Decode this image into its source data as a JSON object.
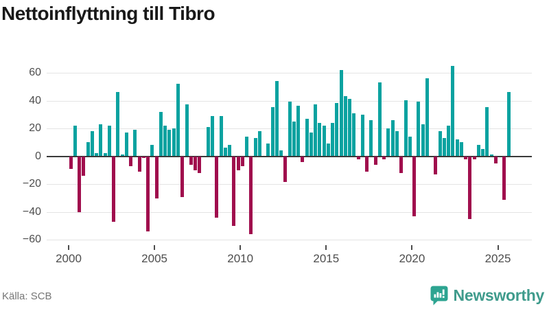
{
  "title": "Nettoinflyttning till Tibro",
  "source": "Källa: SCB",
  "branding": {
    "logo_text": "Newsworthy",
    "logo_icon": "bar-chart-speech-bubble-icon"
  },
  "colors": {
    "positive_bar": "#0aa2a0",
    "negative_bar": "#a00d4d",
    "grid": "#e4e4e4",
    "zero_line": "#3a3a3a",
    "axis_text": "#4d4d4d",
    "title_text": "#191919",
    "source_text": "#767676",
    "brand": "#3f9b8c"
  },
  "chart_data": {
    "type": "bar",
    "title": "Nettoinflyttning till Tibro",
    "x_unit": "quarter",
    "start": "2000Q1",
    "end": "2025Q3",
    "grid": true,
    "legend": "none",
    "ylim": [
      -65,
      68
    ],
    "y_ticks": [
      60,
      40,
      20,
      0,
      -20,
      -40,
      -60
    ],
    "y_tick_labels": [
      "60",
      "40",
      "20",
      "0",
      "−20",
      "−40",
      "−60"
    ],
    "x_tick_years": [
      2000,
      2005,
      2010,
      2015,
      2020,
      2025
    ],
    "x_tick_labels": [
      "2000",
      "2005",
      "2010",
      "2015",
      "2020",
      "2025"
    ],
    "series": [
      {
        "name": "Nettoinflyttning till Tibro",
        "years": [
          {
            "year": 2000,
            "q": [
              -9,
              22,
              -40,
              -14
            ]
          },
          {
            "year": 2001,
            "q": [
              10,
              18,
              2,
              23
            ]
          },
          {
            "year": 2002,
            "q": [
              2,
              22,
              -47,
              46
            ]
          },
          {
            "year": 2003,
            "q": [
              1,
              17,
              -7,
              19
            ]
          },
          {
            "year": 2004,
            "q": [
              -11,
              -1,
              -54,
              8
            ]
          },
          {
            "year": 2005,
            "q": [
              -30,
              32,
              22,
              19
            ]
          },
          {
            "year": 2006,
            "q": [
              20,
              52,
              -29,
              37
            ]
          },
          {
            "year": 2007,
            "q": [
              -6,
              -10,
              -12,
              0
            ]
          },
          {
            "year": 2008,
            "q": [
              21,
              29,
              -44,
              29
            ]
          },
          {
            "year": 2009,
            "q": [
              6,
              8,
              -50,
              -10
            ]
          },
          {
            "year": 2010,
            "q": [
              -7,
              14,
              -56,
              13
            ]
          },
          {
            "year": 2011,
            "q": [
              18,
              0,
              9,
              35
            ]
          },
          {
            "year": 2012,
            "q": [
              54,
              4,
              -18,
              39
            ]
          },
          {
            "year": 2013,
            "q": [
              25,
              36,
              -4,
              27
            ]
          },
          {
            "year": 2014,
            "q": [
              17,
              37,
              24,
              22
            ]
          },
          {
            "year": 2015,
            "q": [
              9,
              24,
              38,
              62
            ]
          },
          {
            "year": 2016,
            "q": [
              43,
              41,
              31,
              -2
            ]
          },
          {
            "year": 2017,
            "q": [
              30,
              -11,
              26,
              -6
            ]
          },
          {
            "year": 2018,
            "q": [
              53,
              -2,
              20,
              26
            ]
          },
          {
            "year": 2019,
            "q": [
              18,
              -12,
              40,
              14
            ]
          },
          {
            "year": 2020,
            "q": [
              -43,
              39,
              23,
              56
            ]
          },
          {
            "year": 2021,
            "q": [
              0,
              -13,
              18,
              13
            ]
          },
          {
            "year": 2022,
            "q": [
              22,
              65,
              12,
              10
            ]
          },
          {
            "year": 2023,
            "q": [
              -2,
              -45,
              -2,
              8
            ]
          },
          {
            "year": 2024,
            "q": [
              5,
              35,
              1,
              -5
            ]
          },
          {
            "year": 2025,
            "q": [
              0,
              -31,
              46
            ]
          }
        ]
      }
    ]
  }
}
